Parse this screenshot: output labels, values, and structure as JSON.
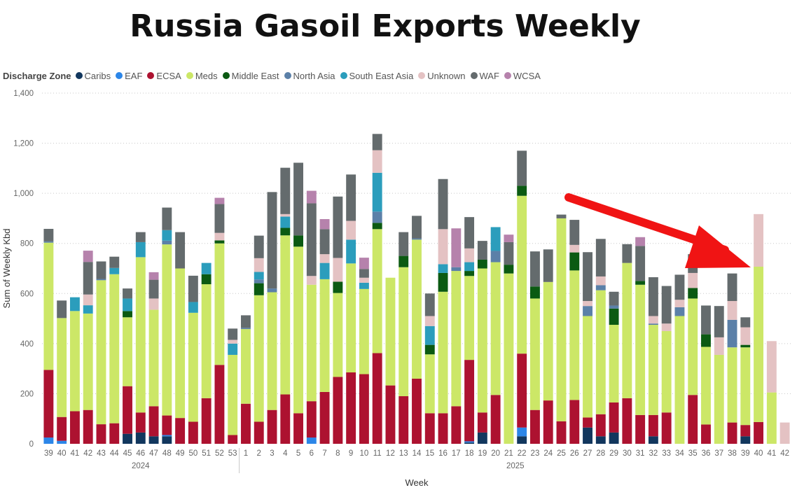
{
  "title": "Russia Gasoil Exports Weekly",
  "chart_data": {
    "type": "bar",
    "stacked": true,
    "title": "Russia Gasoil Exports Weekly",
    "xlabel": "Week",
    "ylabel": "Sum of Weekly Kbd",
    "ylim": [
      0,
      1400
    ],
    "yticks": [
      0,
      200,
      400,
      600,
      800,
      1000,
      1200,
      1400
    ],
    "ytick_labels": [
      "0",
      "200",
      "400",
      "600",
      "800",
      "1,000",
      "1,200",
      "1,400"
    ],
    "grid": "horizontal dotted",
    "legend_title": "Discharge Zone",
    "legend_position": "top-left",
    "year_groups": [
      {
        "label": "2024",
        "start": 0,
        "end": 14
      },
      {
        "label": "2025",
        "start": 15,
        "end": 56
      }
    ],
    "categories": [
      "39",
      "40",
      "41",
      "42",
      "43",
      "44",
      "45",
      "46",
      "47",
      "48",
      "49",
      "50",
      "51",
      "52",
      "53",
      "1",
      "2",
      "3",
      "4",
      "5",
      "6",
      "7",
      "8",
      "9",
      "10",
      "11",
      "12",
      "13",
      "14",
      "15",
      "16",
      "17",
      "18",
      "19",
      "20",
      "21",
      "22",
      "23",
      "24",
      "25",
      "26",
      "27",
      "28",
      "29",
      "30",
      "31",
      "32",
      "33",
      "34",
      "35",
      "36",
      "37",
      "38",
      "39",
      "40",
      "41",
      "42"
    ],
    "series": [
      {
        "name": "Caribs",
        "color": "#12375e",
        "values": [
          0,
          0,
          0,
          0,
          0,
          0,
          40,
          45,
          30,
          30,
          0,
          0,
          0,
          0,
          0,
          0,
          0,
          0,
          0,
          0,
          0,
          0,
          0,
          0,
          0,
          0,
          0,
          0,
          0,
          0,
          0,
          0,
          5,
          45,
          0,
          0,
          30,
          0,
          0,
          0,
          0,
          65,
          30,
          45,
          0,
          0,
          30,
          0,
          0,
          0,
          0,
          0,
          0,
          30,
          0,
          0,
          0
        ]
      },
      {
        "name": "EAF",
        "color": "#2c86e8",
        "values": [
          25,
          12,
          0,
          0,
          0,
          0,
          0,
          0,
          0,
          5,
          0,
          0,
          0,
          0,
          0,
          0,
          0,
          0,
          0,
          0,
          25,
          0,
          0,
          0,
          0,
          0,
          0,
          0,
          0,
          0,
          0,
          0,
          5,
          0,
          0,
          0,
          35,
          0,
          0,
          0,
          0,
          0,
          0,
          0,
          0,
          0,
          0,
          0,
          0,
          0,
          0,
          0,
          0,
          0,
          0,
          0,
          0
        ]
      },
      {
        "name": "ECSA",
        "color": "#ad1230",
        "values": [
          270,
          95,
          130,
          135,
          78,
          82,
          190,
          80,
          120,
          78,
          103,
          88,
          182,
          315,
          35,
          160,
          88,
          135,
          197,
          122,
          145,
          207,
          267,
          285,
          278,
          362,
          233,
          190,
          260,
          122,
          122,
          150,
          325,
          80,
          195,
          0,
          295,
          135,
          173,
          90,
          175,
          40,
          88,
          120,
          182,
          115,
          85,
          125,
          0,
          195,
          77,
          0,
          85,
          45,
          87,
          0,
          0
        ]
      },
      {
        "name": "Meds",
        "color": "#cce767",
        "values": [
          508,
          395,
          400,
          385,
          575,
          595,
          275,
          620,
          385,
          683,
          597,
          435,
          455,
          485,
          320,
          298,
          505,
          470,
          635,
          665,
          465,
          450,
          335,
          435,
          340,
          495,
          430,
          515,
          555,
          235,
          485,
          540,
          335,
          575,
          530,
          680,
          630,
          445,
          473,
          810,
          517,
          405,
          495,
          310,
          540,
          520,
          360,
          325,
          510,
          385,
          310,
          355,
          300,
          310,
          620,
          205,
          0
        ]
      },
      {
        "name": "Middle East",
        "color": "#0b5a12",
        "values": [
          0,
          0,
          0,
          0,
          0,
          0,
          25,
          0,
          0,
          0,
          0,
          0,
          40,
          12,
          0,
          0,
          48,
          0,
          30,
          45,
          0,
          0,
          45,
          0,
          0,
          25,
          0,
          45,
          0,
          38,
          75,
          0,
          20,
          35,
          0,
          35,
          40,
          48,
          0,
          0,
          72,
          0,
          0,
          65,
          0,
          15,
          0,
          0,
          0,
          42,
          50,
          0,
          0,
          10,
          0,
          0,
          0
        ]
      },
      {
        "name": "North Asia",
        "color": "#5b80a8",
        "values": [
          5,
          0,
          0,
          0,
          5,
          0,
          0,
          0,
          0,
          15,
          0,
          0,
          0,
          0,
          0,
          5,
          15,
          15,
          0,
          0,
          0,
          0,
          0,
          0,
          0,
          45,
          0,
          0,
          5,
          0,
          0,
          15,
          0,
          0,
          45,
          0,
          0,
          0,
          0,
          0,
          0,
          40,
          20,
          12,
          0,
          0,
          5,
          0,
          35,
          0,
          0,
          0,
          110,
          0,
          0,
          0,
          0
        ]
      },
      {
        "name": "South East Asia",
        "color": "#2b9dbc",
        "values": [
          0,
          0,
          55,
          33,
          0,
          25,
          50,
          60,
          0,
          42,
          0,
          43,
          45,
          0,
          45,
          0,
          30,
          0,
          45,
          0,
          0,
          65,
          0,
          95,
          25,
          155,
          0,
          0,
          0,
          75,
          35,
          0,
          35,
          0,
          95,
          0,
          0,
          0,
          0,
          0,
          0,
          0,
          0,
          0,
          0,
          0,
          0,
          0,
          0,
          0,
          0,
          0,
          0,
          0,
          0,
          0,
          0
        ]
      },
      {
        "name": "Unknown",
        "color": "#e4c2c3",
        "values": [
          0,
          0,
          0,
          43,
          0,
          0,
          0,
          0,
          45,
          0,
          0,
          0,
          0,
          30,
          15,
          0,
          55,
          0,
          10,
          0,
          35,
          35,
          95,
          75,
          20,
          90,
          0,
          0,
          0,
          40,
          140,
          0,
          55,
          0,
          0,
          0,
          0,
          0,
          0,
          0,
          30,
          20,
          35,
          0,
          0,
          0,
          30,
          30,
          30,
          60,
          0,
          70,
          75,
          70,
          210,
          205,
          85
        ]
      },
      {
        "name": "WAF",
        "color": "#646b6d",
        "values": [
          50,
          70,
          0,
          130,
          70,
          45,
          40,
          40,
          75,
          90,
          145,
          105,
          0,
          115,
          45,
          50,
          90,
          385,
          185,
          290,
          290,
          100,
          245,
          185,
          35,
          65,
          0,
          95,
          90,
          90,
          200,
          0,
          125,
          75,
          0,
          90,
          140,
          140,
          130,
          15,
          100,
          195,
          150,
          55,
          75,
          140,
          155,
          150,
          100,
          75,
          115,
          125,
          110,
          40,
          0,
          0,
          0
        ]
      },
      {
        "name": "WCSA",
        "color": "#b682ac",
        "values": [
          0,
          0,
          0,
          45,
          0,
          0,
          0,
          0,
          30,
          0,
          0,
          0,
          0,
          25,
          0,
          0,
          0,
          0,
          0,
          0,
          50,
          40,
          0,
          0,
          45,
          0,
          0,
          0,
          0,
          0,
          0,
          155,
          0,
          0,
          0,
          30,
          0,
          0,
          0,
          0,
          0,
          0,
          0,
          0,
          0,
          35,
          0,
          0,
          0,
          0,
          0,
          0,
          0,
          0,
          0,
          0,
          0
        ]
      }
    ]
  }
}
